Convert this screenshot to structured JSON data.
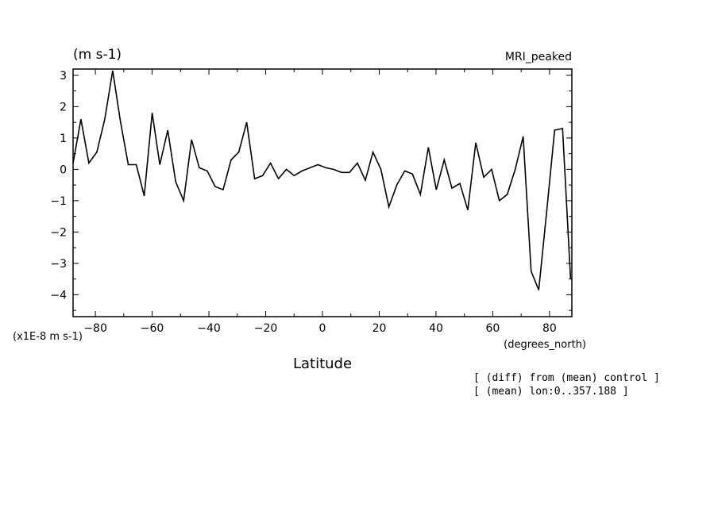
{
  "chart_data": {
    "type": "line",
    "title": "MRI_peaked",
    "units_label": "(m s-1)",
    "scale_label": "(x1E-8 m s-1)",
    "xlabel": "Latitude",
    "xunits_label": "(degrees_north)",
    "xlim": [
      -87.86,
      87.86
    ],
    "ylim": [
      -4.7,
      3.2
    ],
    "xticks": [
      -80,
      -60,
      -40,
      -20,
      0,
      20,
      40,
      60,
      80
    ],
    "yticks": [
      3,
      2,
      1,
      0,
      -1,
      -2,
      -3,
      -4
    ],
    "grid": false,
    "series": [
      {
        "x": [
          -87.86,
          -85.1,
          -82.3,
          -79.5,
          -76.7,
          -73.9,
          -71.2,
          -68.4,
          -65.6,
          -62.8,
          -60.0,
          -57.3,
          -54.5,
          -51.7,
          -48.9,
          -46.1,
          -43.4,
          -40.6,
          -37.8,
          -35.0,
          -32.2,
          -29.5,
          -26.7,
          -23.9,
          -21.1,
          -18.3,
          -15.5,
          -12.7,
          -10.0,
          -7.2,
          -4.4,
          -1.6,
          1.2,
          3.9,
          6.7,
          9.5,
          12.3,
          15.1,
          17.8,
          20.6,
          23.4,
          26.2,
          29.0,
          31.7,
          34.5,
          37.3,
          40.1,
          42.9,
          45.6,
          48.4,
          51.2,
          54.0,
          56.8,
          59.6,
          62.3,
          65.1,
          67.9,
          70.7,
          73.5,
          76.2,
          79.0,
          81.8,
          84.6,
          87.4
        ],
        "values": [
          0.2,
          1.6,
          0.2,
          0.55,
          1.6,
          3.15,
          1.55,
          0.15,
          0.15,
          -0.85,
          1.8,
          0.15,
          1.25,
          -0.4,
          -1.0,
          0.95,
          0.05,
          -0.05,
          -0.55,
          -0.65,
          0.3,
          0.55,
          1.5,
          -0.3,
          -0.2,
          0.2,
          -0.3,
          0.0,
          -0.2,
          -0.05,
          0.05,
          0.15,
          0.05,
          0.0,
          -0.1,
          -0.1,
          0.2,
          -0.35,
          0.55,
          0.0,
          -1.2,
          -0.5,
          -0.05,
          -0.15,
          -0.8,
          0.7,
          -0.65,
          0.3,
          -0.6,
          -0.45,
          -1.3,
          0.85,
          -0.25,
          0.0,
          -1.0,
          -0.8,
          0.0,
          1.05,
          -3.25,
          -3.85,
          -1.35,
          1.25,
          1.3,
          -3.5
        ]
      }
    ]
  },
  "annotations": [
    "[ (diff) from (mean) control ]",
    "[ (mean) lon:0..357.188 ]"
  ]
}
